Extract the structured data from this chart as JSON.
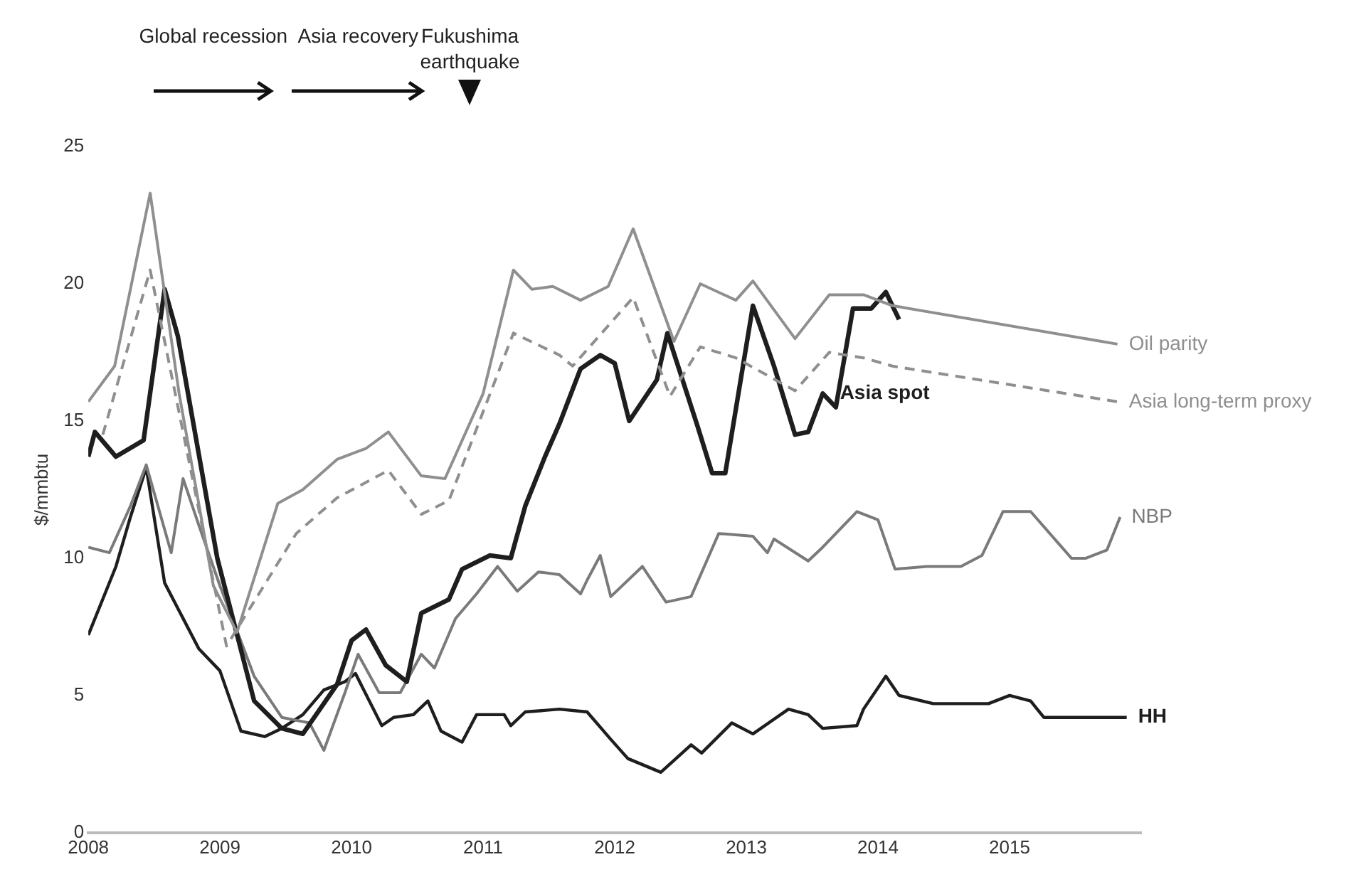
{
  "chart_data": {
    "type": "line",
    "ylabel": "$/mmbtu",
    "xlim": [
      2008,
      2016
    ],
    "xticks": [
      2008,
      2009,
      2010,
      2011,
      2012,
      2013,
      2014,
      2015
    ],
    "ylim": [
      0,
      25
    ],
    "yticks": [
      0,
      5,
      10,
      15,
      20,
      25
    ],
    "grid": false,
    "legend": false,
    "marker": "none",
    "annotations": [
      "Global recession",
      "Asia recovery",
      "Fukushima earthquake"
    ],
    "series": [
      {
        "name": "Oil parity",
        "color": "#8f8f8f",
        "x": [
          2008,
          2008.2,
          2008.47,
          2008.69,
          2008.95,
          2009.13,
          2009.44,
          2009.63,
          2009.89,
          2010.11,
          2010.28,
          2010.53,
          2010.71,
          2011,
          2011.23,
          2011.37,
          2011.53,
          2011.74,
          2011.95,
          2012.14,
          2012.45,
          2012.65,
          2012.92,
          2013.05,
          2013.37,
          2013.63,
          2013.89,
          2014.11,
          2015.82
        ],
        "values": [
          15.7,
          17,
          23.3,
          16,
          9,
          7.3,
          12,
          12.5,
          13.6,
          14,
          14.6,
          13,
          12.9,
          16,
          20.5,
          19.8,
          19.9,
          19.4,
          19.9,
          22,
          17.9,
          20,
          19.4,
          20.1,
          18,
          19.6,
          19.6,
          19.2,
          17.8
        ]
      },
      {
        "name": "Asia long-term proxy",
        "color": "#8f8f8f",
        "line_style": "dashed",
        "x": [
          2008.11,
          2008.47,
          2009.05,
          2009.58,
          2009.89,
          2010.28,
          2010.53,
          2010.74,
          2011.23,
          2011.58,
          2011.68,
          2012.14,
          2012.42,
          2012.65,
          2012.92,
          2013.37,
          2013.63,
          2013.89,
          2014.11,
          2015.82
        ],
        "values": [
          14.5,
          20.5,
          6.8,
          10.9,
          12.2,
          13.2,
          11.6,
          12.1,
          18.2,
          17.4,
          17,
          19.5,
          15.9,
          17.7,
          17.3,
          16.1,
          17.5,
          17.3,
          17,
          15.7
        ]
      },
      {
        "name": "Asia spot",
        "color": "#1e1e1e",
        "x": [
          2008,
          2008.05,
          2008.21,
          2008.42,
          2008.58,
          2008.68,
          2008.98,
          2009.26,
          2009.47,
          2009.63,
          2009.89,
          2010,
          2010.11,
          2010.26,
          2010.42,
          2010.53,
          2010.74,
          2010.84,
          2011.05,
          2011.21,
          2011.32,
          2011.47,
          2011.58,
          2011.74,
          2011.89,
          2012,
          2012.11,
          2012.32,
          2012.4,
          2012.63,
          2012.74,
          2012.84,
          2013.05,
          2013.21,
          2013.37,
          2013.47,
          2013.58,
          2013.68,
          2013.81,
          2013.95,
          2014.06,
          2014.16
        ],
        "values": [
          13.7,
          14.6,
          13.7,
          14.3,
          19.8,
          18.1,
          10,
          4.8,
          3.8,
          3.6,
          5.4,
          7,
          7.4,
          6.1,
          5.5,
          8,
          8.5,
          9.6,
          10.1,
          10,
          11.9,
          13.7,
          14.9,
          16.9,
          17.4,
          17.1,
          15,
          16.5,
          18.2,
          14.8,
          13.1,
          13.1,
          19.2,
          17,
          14.5,
          14.6,
          16,
          15.5,
          19.1,
          19.1,
          19.7,
          18.7
        ]
      },
      {
        "name": "NBP",
        "color": "#7a7a7a",
        "x": [
          2008,
          2008.16,
          2008.32,
          2008.44,
          2008.63,
          2008.72,
          2008.84,
          2009,
          2009.26,
          2009.47,
          2009.68,
          2009.79,
          2009.95,
          2010.05,
          2010.21,
          2010.37,
          2010.53,
          2010.63,
          2010.79,
          2010.95,
          2011.11,
          2011.26,
          2011.42,
          2011.58,
          2011.74,
          2011.79,
          2011.89,
          2011.97,
          2012.21,
          2012.39,
          2012.58,
          2012.79,
          2013.05,
          2013.16,
          2013.21,
          2013.47,
          2013.58,
          2013.84,
          2014,
          2014.13,
          2014.37,
          2014.63,
          2014.79,
          2014.95,
          2015.16,
          2015.47,
          2015.58,
          2015.74,
          2015.84
        ],
        "values": [
          10.4,
          10.2,
          11.9,
          13.4,
          10.2,
          12.9,
          11.2,
          9,
          5.7,
          4.2,
          4,
          3,
          5.1,
          6.5,
          5.1,
          5.1,
          6.5,
          6,
          7.8,
          8.7,
          9.7,
          8.8,
          9.5,
          9.4,
          8.7,
          9.2,
          10.1,
          8.6,
          9.7,
          8.4,
          8.6,
          10.9,
          10.8,
          10.2,
          10.7,
          9.9,
          10.4,
          11.7,
          11.4,
          9.6,
          9.7,
          9.7,
          10.1,
          11.7,
          11.7,
          10,
          10,
          10.3,
          11.5
        ]
      },
      {
        "name": "HH",
        "color": "#1e1e1e",
        "x": [
          2008,
          2008.21,
          2008.32,
          2008.44,
          2008.58,
          2008.84,
          2009,
          2009.16,
          2009.34,
          2009.47,
          2009.63,
          2009.79,
          2009.95,
          2010.03,
          2010.23,
          2010.32,
          2010.47,
          2010.58,
          2010.68,
          2010.84,
          2010.95,
          2011.16,
          2011.21,
          2011.32,
          2011.58,
          2011.79,
          2011.97,
          2012.1,
          2012.35,
          2012.58,
          2012.66,
          2012.89,
          2013.05,
          2013.32,
          2013.47,
          2013.58,
          2013.84,
          2013.89,
          2014.06,
          2014.16,
          2014.42,
          2014.84,
          2015,
          2015.16,
          2015.26,
          2015.68,
          2015.89
        ],
        "values": [
          7.2,
          9.7,
          11.5,
          13.3,
          9.1,
          6.7,
          5.9,
          3.7,
          3.5,
          3.8,
          4.3,
          5.2,
          5.5,
          5.8,
          3.9,
          4.2,
          4.3,
          4.8,
          3.7,
          3.3,
          4.3,
          4.3,
          3.9,
          4.4,
          4.5,
          4.4,
          3.4,
          2.7,
          2.2,
          3.2,
          2.9,
          4,
          3.6,
          4.5,
          4.3,
          3.8,
          3.9,
          4.5,
          5.7,
          5,
          4.7,
          4.7,
          5,
          4.8,
          4.2,
          4.2,
          4.2
        ]
      }
    ]
  }
}
